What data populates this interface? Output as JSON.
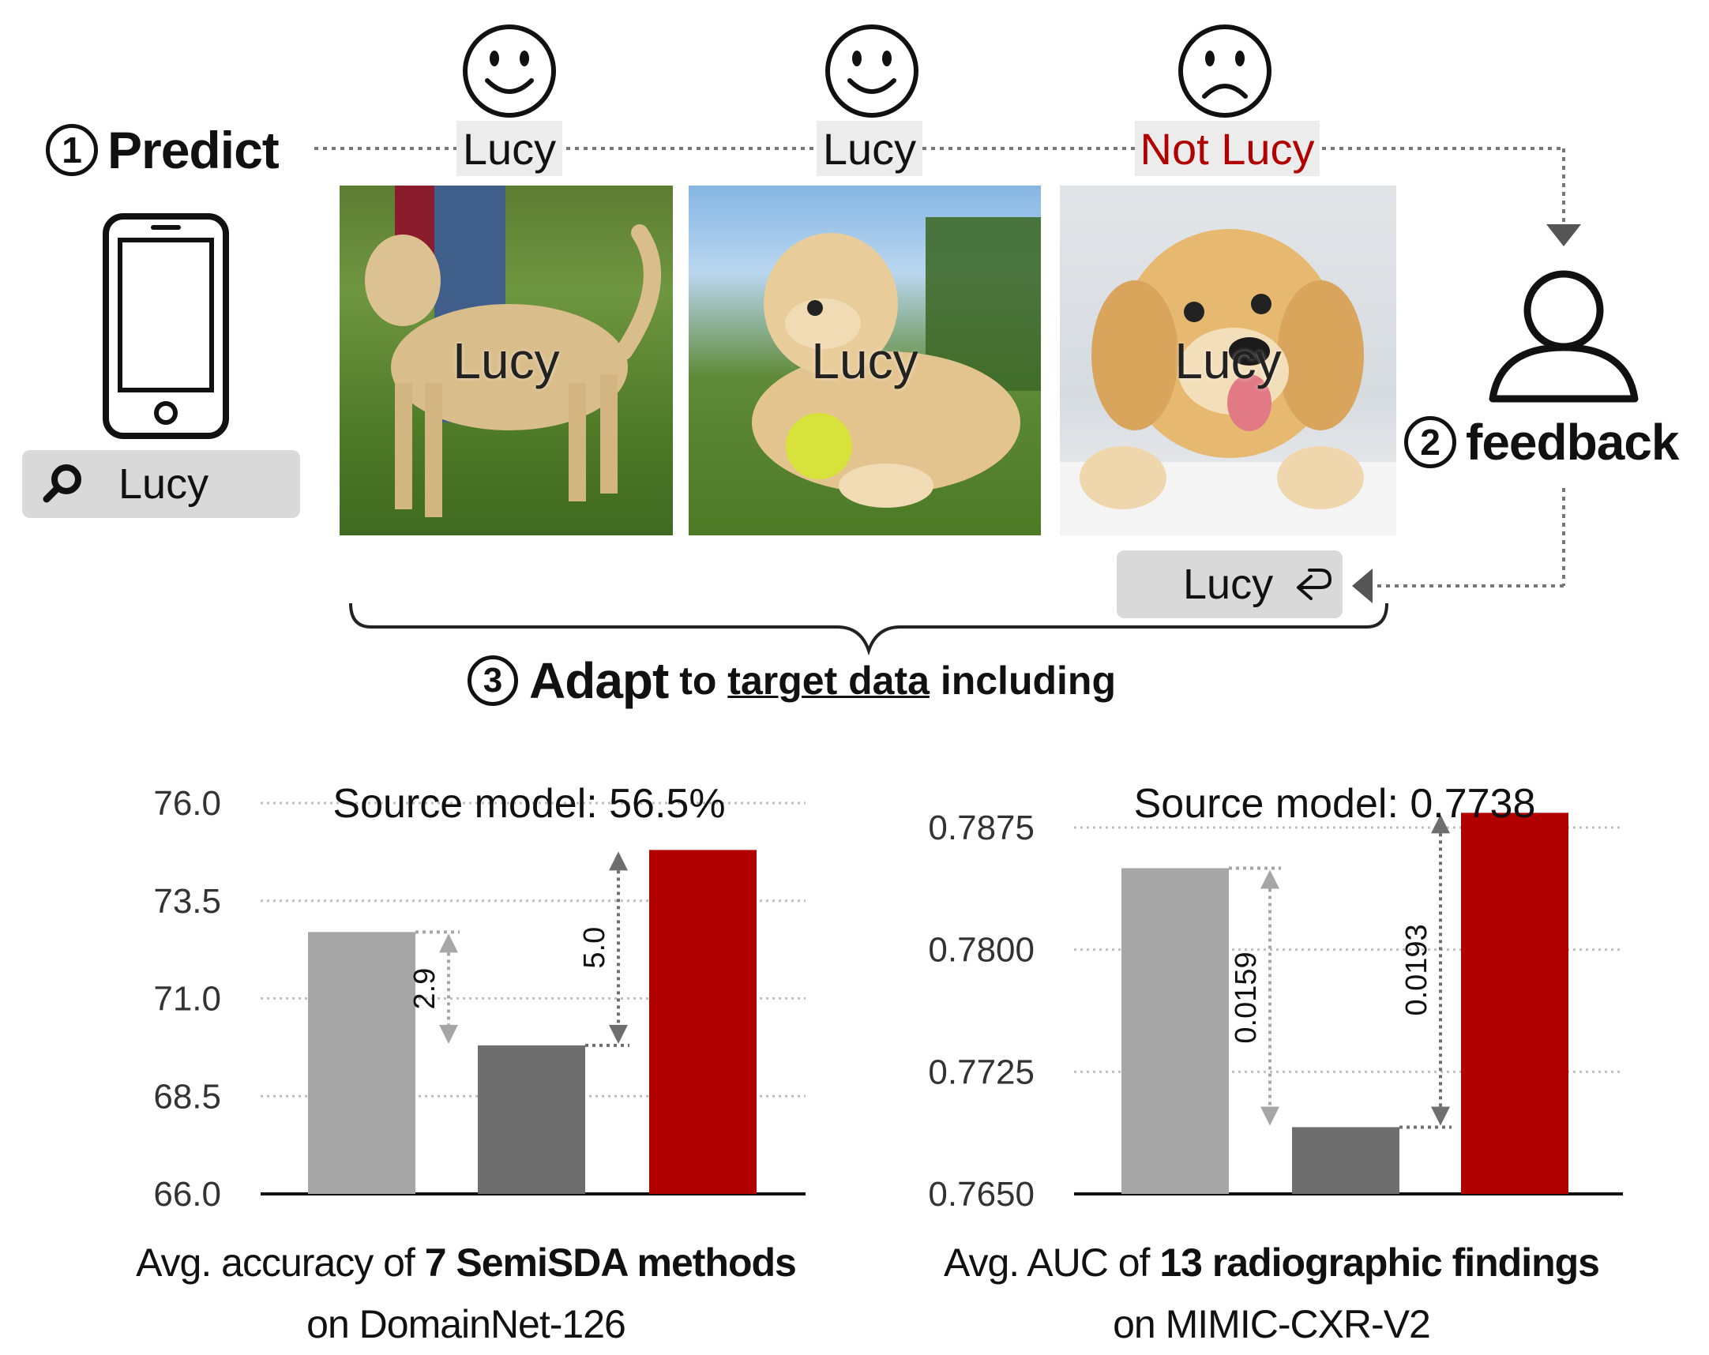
{
  "steps": {
    "predict": {
      "num": "1",
      "label": "Predict"
    },
    "feedback": {
      "num": "2",
      "label": "feedback"
    },
    "adapt": {
      "num": "3",
      "label": "Adapt",
      "text_pre": " to ",
      "text_link": "target data",
      "text_post": " including"
    }
  },
  "search": {
    "value": "Lucy"
  },
  "predictions": [
    {
      "label": "Lucy",
      "face": "smile",
      "color": "#111111"
    },
    {
      "label": "Lucy",
      "face": "smile",
      "color": "#111111"
    },
    {
      "label": "Not Lucy",
      "face": "frown",
      "color": "#b00000"
    }
  ],
  "photos": [
    {
      "label": "Lucy"
    },
    {
      "label": "Lucy"
    },
    {
      "label": "Lucy"
    }
  ],
  "corrected_label": "Lucy",
  "colors": {
    "bar_light": "#a6a6a6",
    "bar_dark": "#6e6e6e",
    "bar_red": "#b00000",
    "wrong": "#b00000"
  },
  "chart_data": [
    {
      "type": "bar",
      "title": "Source model: 56.5%",
      "categories": [
        "",
        "",
        ""
      ],
      "values": [
        72.7,
        69.8,
        74.8
      ],
      "ylim": [
        66.0,
        76.0
      ],
      "yticks": [
        "76.0",
        "73.5",
        "71.0",
        "68.5",
        "66.0"
      ],
      "yticks_values": [
        76.0,
        73.5,
        71.0,
        68.5,
        66.0
      ],
      "grid": true,
      "annotations": [
        {
          "text": "2.9",
          "from": 72.7,
          "to": 69.8,
          "bar": 0,
          "color": "#a6a6a6"
        },
        {
          "text": "5.0",
          "from": 69.8,
          "to": 74.8,
          "bar": 1,
          "color": "#6e6e6e"
        }
      ],
      "caption": {
        "pre": "Avg. accuracy of ",
        "bold": "7 SemiSDA methods",
        "line2": "on DomainNet-126"
      }
    },
    {
      "type": "bar",
      "title": "Source model: 0.7738",
      "categories": [
        "",
        "",
        ""
      ],
      "values": [
        0.785,
        0.7691,
        0.7884
      ],
      "ylim": [
        0.765,
        0.789
      ],
      "yticks": [
        "0.7875",
        "0.7800",
        "0.7725",
        "0.7650"
      ],
      "yticks_values": [
        0.7875,
        0.78,
        0.7725,
        0.765
      ],
      "grid": true,
      "annotations": [
        {
          "text": "0.0159",
          "from": 0.785,
          "to": 0.7691,
          "bar": 0,
          "color": "#a6a6a6"
        },
        {
          "text": "0.0193",
          "from": 0.7691,
          "to": 0.7884,
          "bar": 1,
          "color": "#6e6e6e"
        }
      ],
      "caption": {
        "pre": "Avg. AUC of ",
        "bold": "13 radiographic findings",
        "line2": "on MIMIC-CXR-V2"
      }
    }
  ]
}
